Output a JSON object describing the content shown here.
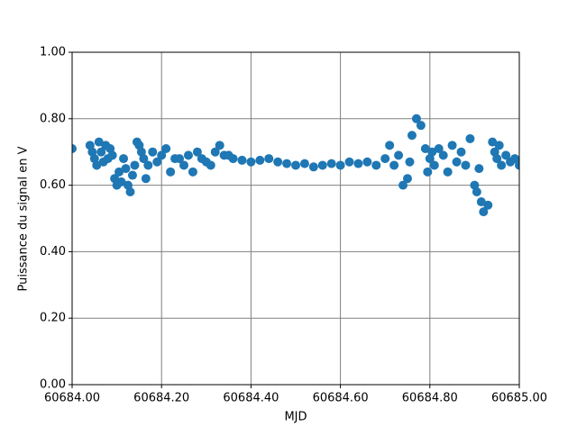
{
  "chart_data": {
    "type": "scatter",
    "xlabel": "MJD",
    "ylabel": "Puissance du signal en V",
    "series": [
      {
        "color": "#1f77b4",
        "x": [
          60684.0,
          60684.04,
          60684.045,
          60684.05,
          60684.055,
          60684.06,
          60684.065,
          60684.07,
          60684.075,
          60684.08,
          60684.085,
          60684.09,
          60684.095,
          60684.1,
          60684.105,
          60684.11,
          60684.115,
          60684.12,
          60684.125,
          60684.13,
          60684.135,
          60684.14,
          60684.145,
          60684.15,
          60684.155,
          60684.16,
          60684.165,
          60684.17,
          60684.18,
          60684.19,
          60684.2,
          60684.21,
          60684.22,
          60684.23,
          60684.24,
          60684.25,
          60684.26,
          60684.27,
          60684.28,
          60684.29,
          60684.3,
          60684.31,
          60684.32,
          60684.33,
          60684.34,
          60684.35,
          60684.36,
          60684.38,
          60684.4,
          60684.42,
          60684.44,
          60684.46,
          60684.48,
          60684.5,
          60684.52,
          60684.54,
          60684.56,
          60684.58,
          60684.6,
          60684.62,
          60684.64,
          60684.66,
          60684.68,
          60684.7,
          60684.71,
          60684.72,
          60684.73,
          60684.74,
          60684.75,
          60684.755,
          60684.76,
          60684.77,
          60684.78,
          60684.79,
          60684.795,
          60684.8,
          60684.805,
          60684.81,
          60684.82,
          60684.83,
          60684.84,
          60684.85,
          60684.86,
          60684.87,
          60684.88,
          60684.89,
          60684.9,
          60684.905,
          60684.91,
          60684.915,
          60684.92,
          60684.93,
          60684.94,
          60684.945,
          60684.95,
          60684.955,
          60684.96,
          60684.97,
          60684.98,
          60684.99,
          60685.0
        ],
        "values": [
          0.71,
          0.72,
          0.7,
          0.68,
          0.66,
          0.73,
          0.7,
          0.67,
          0.72,
          0.68,
          0.71,
          0.69,
          0.62,
          0.6,
          0.64,
          0.61,
          0.68,
          0.65,
          0.6,
          0.58,
          0.63,
          0.66,
          0.73,
          0.72,
          0.7,
          0.68,
          0.62,
          0.66,
          0.7,
          0.67,
          0.69,
          0.71,
          0.64,
          0.68,
          0.68,
          0.66,
          0.69,
          0.64,
          0.7,
          0.68,
          0.67,
          0.66,
          0.7,
          0.72,
          0.69,
          0.69,
          0.68,
          0.675,
          0.67,
          0.675,
          0.68,
          0.67,
          0.665,
          0.66,
          0.665,
          0.655,
          0.66,
          0.665,
          0.66,
          0.67,
          0.665,
          0.67,
          0.66,
          0.68,
          0.72,
          0.66,
          0.69,
          0.6,
          0.62,
          0.67,
          0.75,
          0.8,
          0.78,
          0.71,
          0.64,
          0.68,
          0.7,
          0.66,
          0.71,
          0.69,
          0.64,
          0.72,
          0.67,
          0.7,
          0.66,
          0.74,
          0.6,
          0.58,
          0.65,
          0.55,
          0.52,
          0.54,
          0.73,
          0.7,
          0.68,
          0.72,
          0.66,
          0.69,
          0.67,
          0.68,
          0.66
        ]
      }
    ],
    "xlim": [
      60684.0,
      60685.0
    ],
    "xticks": [
      {
        "value": 60684.0,
        "label": "60684.00"
      },
      {
        "value": 60684.2,
        "label": "60684.20"
      },
      {
        "value": 60684.4,
        "label": "60684.40"
      },
      {
        "value": 60684.6,
        "label": "60684.60"
      },
      {
        "value": 60684.8,
        "label": "60684.80"
      },
      {
        "value": 60685.0,
        "label": "60685.00"
      }
    ],
    "ylim": [
      0,
      1
    ],
    "yticks": [
      {
        "value": 0,
        "label": "0.00"
      },
      {
        "value": 0.2,
        "label": "0.20"
      },
      {
        "value": 0.4,
        "label": "0.40"
      },
      {
        "value": 0.6,
        "label": "0.60"
      },
      {
        "value": 0.8,
        "label": "0.80"
      },
      {
        "value": 1,
        "label": "1.00"
      }
    ],
    "grid": true
  }
}
